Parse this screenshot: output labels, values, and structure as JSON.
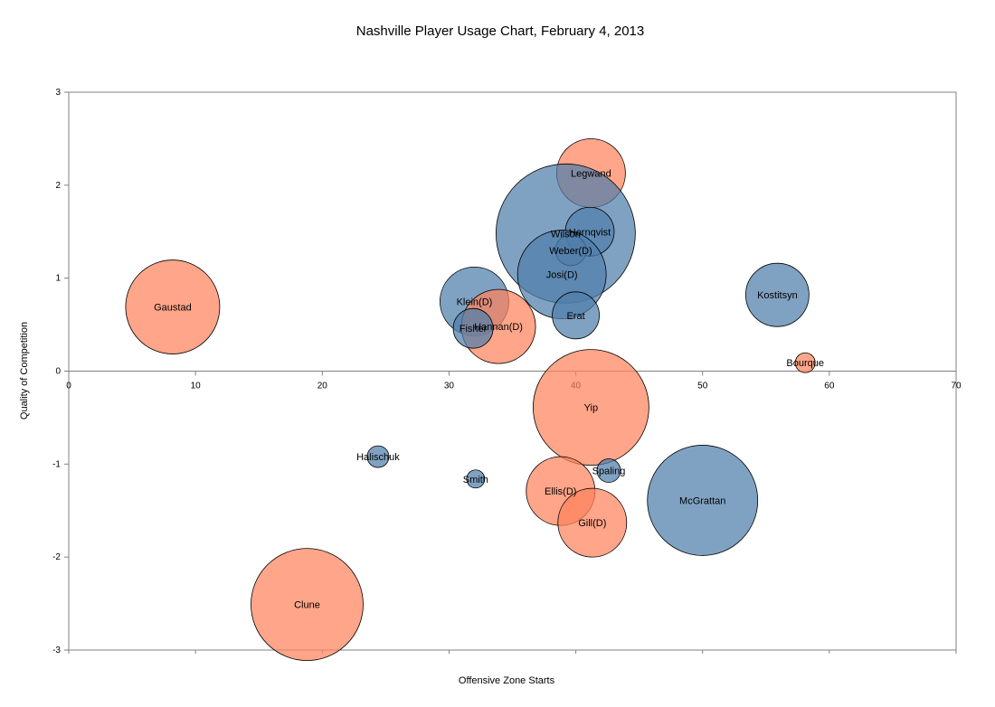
{
  "chart_data": {
    "type": "scatter",
    "title": "Nashville Player Usage Chart, February 4, 2013",
    "xlabel": "Offensive Zone Starts",
    "ylabel": "Quality of Competition",
    "xlim": [
      0,
      70
    ],
    "ylim": [
      -3,
      3
    ],
    "xticks": [
      0,
      10,
      20,
      30,
      40,
      50,
      60,
      70
    ],
    "yticks": [
      -3,
      -2,
      -1,
      0,
      1,
      2,
      3
    ],
    "grid": false,
    "legend": "none",
    "colors": {
      "blue": "#4f7eab",
      "orange": "#ff825c"
    },
    "points": [
      {
        "name": "Legwand",
        "x": 41.2,
        "y": 2.13,
        "size": 38,
        "color": "orange"
      },
      {
        "name": "Wilson",
        "x": 39.2,
        "y": 1.48,
        "size": 77,
        "color": "blue"
      },
      {
        "name": "Hornqvist",
        "x": 41.1,
        "y": 1.5,
        "size": 27,
        "color": "blue"
      },
      {
        "name": "Weber(D)",
        "x": 39.6,
        "y": 1.3,
        "size": 17,
        "color": "blue"
      },
      {
        "name": "Josi(D)",
        "x": 38.9,
        "y": 1.04,
        "size": 49,
        "color": "blue"
      },
      {
        "name": "Klein(D)",
        "x": 32.0,
        "y": 0.75,
        "size": 38,
        "color": "blue"
      },
      {
        "name": "Hannan(D)",
        "x": 33.9,
        "y": 0.48,
        "size": 41,
        "color": "orange"
      },
      {
        "name": "Fisher",
        "x": 31.9,
        "y": 0.46,
        "size": 22,
        "color": "blue"
      },
      {
        "name": "Erat",
        "x": 40.0,
        "y": 0.6,
        "size": 26,
        "color": "blue"
      },
      {
        "name": "Gaustad",
        "x": 8.2,
        "y": 0.69,
        "size": 52,
        "color": "orange"
      },
      {
        "name": "Kostitsyn",
        "x": 55.9,
        "y": 0.82,
        "size": 35,
        "color": "blue"
      },
      {
        "name": "Bourque",
        "x": 58.1,
        "y": 0.09,
        "size": 11,
        "color": "orange"
      },
      {
        "name": "Yip",
        "x": 41.2,
        "y": -0.39,
        "size": 64,
        "color": "orange"
      },
      {
        "name": "Halischuk",
        "x": 24.4,
        "y": -0.92,
        "size": 12,
        "color": "blue"
      },
      {
        "name": "Smith",
        "x": 32.1,
        "y": -1.16,
        "size": 10,
        "color": "blue"
      },
      {
        "name": "Spaling",
        "x": 42.6,
        "y": -1.07,
        "size": 13,
        "color": "blue"
      },
      {
        "name": "Ellis(D)",
        "x": 38.8,
        "y": -1.29,
        "size": 38,
        "color": "orange"
      },
      {
        "name": "Gill(D)",
        "x": 41.3,
        "y": -1.63,
        "size": 38,
        "color": "orange"
      },
      {
        "name": "McGrattan",
        "x": 50.0,
        "y": -1.39,
        "size": 61,
        "color": "blue"
      },
      {
        "name": "Clune",
        "x": 18.8,
        "y": -2.51,
        "size": 62,
        "color": "orange"
      }
    ]
  }
}
